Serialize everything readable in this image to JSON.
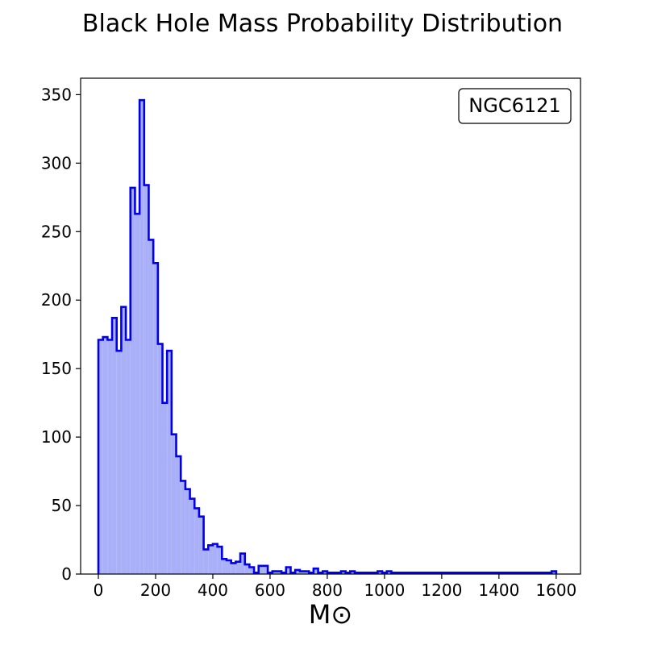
{
  "chart_data": {
    "type": "histogram",
    "title": "Black Hole Mass Probability Distribution",
    "xlabel": "M⊙",
    "ylabel": "",
    "annotation": "NGC6121",
    "xlim": [
      -62,
      1685
    ],
    "ylim": [
      0,
      362
    ],
    "xticks": [
      0,
      200,
      400,
      600,
      800,
      1000,
      1200,
      1400,
      1600
    ],
    "yticks": [
      0,
      50,
      100,
      150,
      200,
      250,
      300,
      350
    ],
    "grid": false,
    "colors": {
      "fill": "#aab0f8",
      "edge": "#0000ee"
    },
    "bin_edges": [
      0,
      16,
      32,
      48,
      64,
      80,
      96,
      112,
      128,
      144,
      160,
      176,
      192,
      208,
      224,
      240,
      256,
      272,
      288,
      304,
      320,
      336,
      352,
      368,
      384,
      400,
      416,
      432,
      448,
      464,
      480,
      496,
      512,
      528,
      544,
      560,
      576,
      592,
      608,
      624,
      640,
      656,
      672,
      688,
      704,
      720,
      736,
      752,
      768,
      784,
      800,
      816,
      832,
      848,
      864,
      880,
      896,
      912,
      928,
      944,
      960,
      976,
      992,
      1008,
      1024,
      1040,
      1056,
      1072,
      1088,
      1104,
      1120,
      1136,
      1152,
      1168,
      1184,
      1200,
      1216,
      1232,
      1248,
      1264,
      1280,
      1296,
      1312,
      1328,
      1344,
      1360,
      1376,
      1392,
      1408,
      1424,
      1440,
      1456,
      1472,
      1488,
      1504,
      1520,
      1536,
      1552,
      1568,
      1584,
      1600
    ],
    "counts": [
      171,
      173,
      171,
      187,
      163,
      195,
      171,
      282,
      263,
      346,
      284,
      244,
      227,
      168,
      125,
      163,
      102,
      86,
      68,
      62,
      55,
      48,
      42,
      18,
      21,
      22,
      20,
      11,
      10,
      8,
      9,
      15,
      7,
      5,
      1,
      6,
      6,
      1,
      2,
      2,
      1,
      5,
      1,
      3,
      2,
      2,
      1,
      4,
      1,
      2,
      1,
      1,
      1,
      2,
      1,
      2,
      1,
      1,
      1,
      1,
      1,
      2,
      1,
      2,
      1,
      1,
      1,
      1,
      1,
      1,
      1,
      1,
      1,
      1,
      1,
      1,
      1,
      1,
      1,
      1,
      1,
      1,
      1,
      1,
      1,
      1,
      1,
      1,
      1,
      1,
      1,
      1,
      1,
      1,
      1,
      1,
      1,
      1,
      1,
      2
    ]
  }
}
